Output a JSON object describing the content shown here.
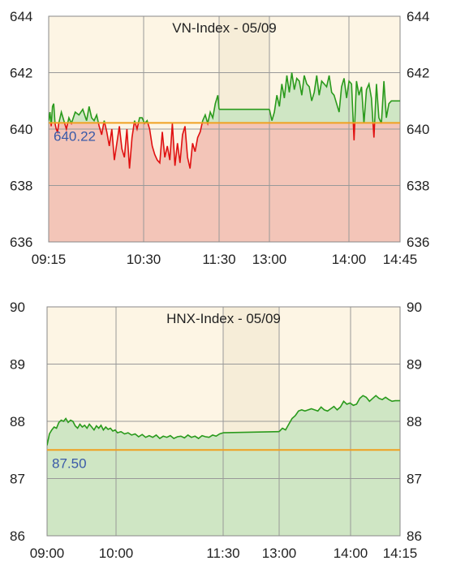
{
  "chart_data": [
    {
      "type": "line",
      "title": "VN-Index - 05/09",
      "ylim": [
        636,
        644
      ],
      "y_ticks": [
        "644",
        "642",
        "640",
        "638",
        "636"
      ],
      "x_ticks": [
        "09:15",
        "10:30",
        "11:30",
        "13:00",
        "14:00",
        "14:45"
      ],
      "reference": 640.22,
      "reference_label": "640.22",
      "lunch_break": [
        "11:30",
        "13:00"
      ],
      "grid": true,
      "colors": {
        "above": "#2a9a1c",
        "below": "#e01010",
        "fill_above": "#cfe6c4",
        "fill_below": "#f3c5b8",
        "reference": "#f0a020",
        "background": "#fdf5e4",
        "break": "#f6edd8",
        "ref_label": "#3a5aa8"
      },
      "series": [
        {
          "x": [
            "09:15",
            "09:16",
            "09:17",
            "09:18",
            "09:19",
            "09:20",
            "09:21",
            "09:22",
            "09:23",
            "09:25",
            "09:27",
            "09:29",
            "09:31",
            "09:33",
            "09:36",
            "09:39",
            "09:42",
            "09:45",
            "09:47",
            "09:49",
            "09:51",
            "09:53",
            "09:55",
            "09:57",
            "09:59",
            "10:01",
            "10:03",
            "10:05",
            "10:07",
            "10:09",
            "10:11",
            "10:13",
            "10:15",
            "10:17",
            "10:19",
            "10:21",
            "10:23",
            "10:25",
            "10:27",
            "10:29",
            "10:31",
            "10:33",
            "10:35",
            "10:37",
            "10:39",
            "10:41",
            "10:43",
            "10:45",
            "10:47",
            "10:49",
            "10:51",
            "10:53",
            "10:55",
            "10:57",
            "10:59",
            "11:01",
            "11:03",
            "11:05",
            "11:07",
            "11:09",
            "11:11",
            "11:13",
            "11:15",
            "11:17",
            "11:19",
            "11:21",
            "11:23",
            "11:25",
            "11:27",
            "11:29",
            "11:30"
          ],
          "values": [
            640.3,
            640.6,
            640.1,
            640.8,
            640.9,
            640.2,
            640.0,
            639.9,
            640.2,
            640.6,
            640.3,
            640.0,
            640.4,
            640.2,
            640.6,
            640.5,
            640.7,
            640.3,
            640.8,
            640.4,
            640.3,
            640.5,
            640.1,
            639.8,
            640.3,
            639.9,
            639.4,
            640.0,
            638.9,
            639.5,
            640.1,
            639.3,
            639.0,
            640.0,
            638.6,
            639.7,
            640.3,
            640.0,
            640.4,
            640.4,
            640.2,
            640.3,
            640.0,
            639.4,
            639.1,
            638.9,
            638.8,
            639.9,
            639.0,
            639.4,
            638.9,
            640.2,
            638.7,
            639.5,
            638.8,
            639.8,
            640.1,
            639.0,
            638.6,
            639.5,
            639.2,
            639.7,
            639.9,
            640.3,
            640.5,
            640.2,
            640.6,
            640.4,
            640.9,
            641.2,
            640.7
          ]
        },
        {
          "x": [
            "13:00",
            "13:02",
            "13:04",
            "13:06",
            "13:08",
            "13:10",
            "13:12",
            "13:14",
            "13:16",
            "13:18",
            "13:20",
            "13:22",
            "13:24",
            "13:26",
            "13:28",
            "13:30",
            "13:32",
            "13:34",
            "13:36",
            "13:38",
            "13:40",
            "13:42",
            "13:44",
            "13:46",
            "13:48",
            "13:50",
            "13:52",
            "13:54",
            "13:56",
            "13:58",
            "14:00",
            "14:02",
            "14:04",
            "14:06",
            "14:08",
            "14:10",
            "14:12",
            "14:14",
            "14:16",
            "14:18",
            "14:20",
            "14:22",
            "14:24",
            "14:26",
            "14:28",
            "14:30",
            "14:32",
            "14:34",
            "14:36",
            "14:38",
            "14:45"
          ],
          "values": [
            640.7,
            640.3,
            640.6,
            641.2,
            640.8,
            641.6,
            641.1,
            641.9,
            641.3,
            642.0,
            641.4,
            641.8,
            641.7,
            641.2,
            641.9,
            641.6,
            641.5,
            641.0,
            641.3,
            641.9,
            641.2,
            641.7,
            641.6,
            641.5,
            641.9,
            641.3,
            641.2,
            640.9,
            640.6,
            641.5,
            641.8,
            641.1,
            641.7,
            641.6,
            639.6,
            641.7,
            641.2,
            641.5,
            640.2,
            641.4,
            641.6,
            641.1,
            639.7,
            641.6,
            640.4,
            640.2,
            641.7,
            640.4,
            640.9,
            641.0,
            641.0
          ]
        }
      ]
    },
    {
      "type": "line",
      "title": "HNX-Index - 05/09",
      "ylim": [
        86,
        90
      ],
      "y_ticks": [
        "90",
        "89",
        "88",
        "87",
        "86"
      ],
      "x_ticks": [
        "09:00",
        "10:00",
        "11:30",
        "13:00",
        "14:00",
        "14:15"
      ],
      "reference": 87.5,
      "reference_label": "87.50",
      "lunch_break": [
        "11:30",
        "13:00"
      ],
      "grid": true,
      "colors": {
        "above": "#2a9a1c",
        "below": "#e01010",
        "fill_above": "#cfe6c4",
        "fill_below": "#f3c5b8",
        "reference": "#f0a020",
        "background": "#fdf5e4",
        "break": "#f6edd8",
        "ref_label": "#3a5aa8"
      },
      "series": [
        {
          "x": [
            "09:00",
            "09:02",
            "09:04",
            "09:06",
            "09:08",
            "09:10",
            "09:12",
            "09:14",
            "09:16",
            "09:18",
            "09:20",
            "09:22",
            "09:24",
            "09:26",
            "09:28",
            "09:30",
            "09:32",
            "09:34",
            "09:36",
            "09:38",
            "09:40",
            "09:42",
            "09:44",
            "09:46",
            "09:48",
            "09:50",
            "09:52",
            "09:54",
            "09:56",
            "09:58",
            "10:00",
            "10:03",
            "10:06",
            "10:09",
            "10:12",
            "10:15",
            "10:18",
            "10:21",
            "10:24",
            "10:27",
            "10:30",
            "10:33",
            "10:36",
            "10:39",
            "10:42",
            "10:45",
            "10:48",
            "10:51",
            "10:54",
            "10:57",
            "11:00",
            "11:03",
            "11:06",
            "11:09",
            "11:12",
            "11:15",
            "11:18",
            "11:21",
            "11:24",
            "11:27",
            "11:30"
          ],
          "values": [
            87.58,
            87.78,
            87.85,
            87.9,
            87.88,
            87.98,
            88.02,
            88.0,
            88.05,
            87.98,
            88.02,
            88.0,
            87.92,
            87.88,
            87.95,
            87.9,
            87.93,
            87.88,
            87.95,
            87.9,
            87.85,
            87.92,
            87.88,
            87.93,
            87.85,
            87.9,
            87.86,
            87.88,
            87.83,
            87.85,
            87.8,
            87.82,
            87.78,
            87.8,
            87.76,
            87.78,
            87.73,
            87.77,
            87.72,
            87.75,
            87.72,
            87.76,
            87.7,
            87.74,
            87.72,
            87.75,
            87.7,
            87.73,
            87.74,
            87.71,
            87.76,
            87.72,
            87.74,
            87.7,
            87.75,
            87.73,
            87.72,
            87.76,
            87.74,
            87.78,
            87.8
          ]
        },
        {
          "x": [
            "13:00",
            "13:02",
            "13:04",
            "13:06",
            "13:08",
            "13:10",
            "13:12",
            "13:14",
            "13:16",
            "13:18",
            "13:20",
            "13:22",
            "13:24",
            "13:26",
            "13:28",
            "13:30",
            "13:32",
            "13:34",
            "13:36",
            "13:38",
            "13:40",
            "13:42",
            "13:44",
            "13:46",
            "13:48",
            "13:50",
            "13:52",
            "13:54",
            "13:56",
            "13:58",
            "14:00",
            "14:02",
            "14:04",
            "14:06",
            "14:08",
            "14:10",
            "14:12",
            "14:15"
          ],
          "values": [
            87.82,
            87.88,
            87.85,
            87.95,
            88.05,
            88.1,
            88.18,
            88.2,
            88.18,
            88.2,
            88.22,
            88.2,
            88.18,
            88.25,
            88.2,
            88.18,
            88.22,
            88.26,
            88.2,
            88.25,
            88.35,
            88.3,
            88.32,
            88.28,
            88.3,
            88.4,
            88.45,
            88.42,
            88.35,
            88.4,
            88.45,
            88.4,
            88.38,
            88.42,
            88.38,
            88.35,
            88.36,
            88.36
          ]
        }
      ]
    }
  ]
}
